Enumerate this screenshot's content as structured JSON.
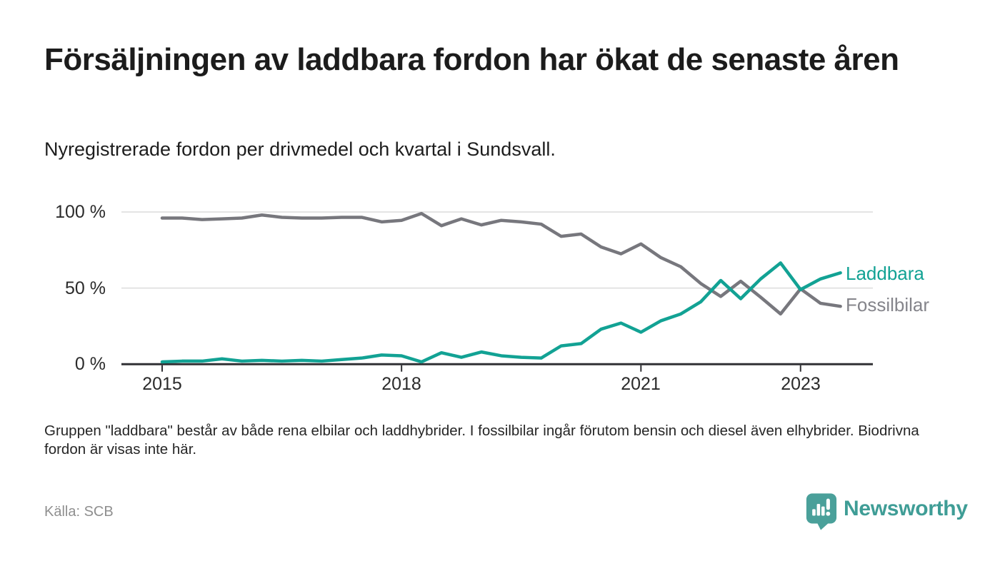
{
  "header": {
    "title": "Försäljningen av laddbara fordon har ökat de senaste åren",
    "subtitle": "Nyregistrerade fordon per drivmedel och kvartal i Sundsvall."
  },
  "chart_data": {
    "type": "line",
    "unit": "%",
    "title": "Nyregistrerade fordon per drivmedel och kvartal i Sundsvall",
    "ylim": [
      0,
      100
    ],
    "y_ticks": [
      "100 %",
      "50 %",
      "0 %"
    ],
    "x_ticks": [
      "2015",
      "2018",
      "2021",
      "2023"
    ],
    "grid_lines_percent": [
      50,
      100
    ],
    "legend_position": "end-of-line-labels-right",
    "x_quarters": [
      "2015 Q1",
      "2015 Q2",
      "2015 Q3",
      "2015 Q4",
      "2016 Q1",
      "2016 Q2",
      "2016 Q3",
      "2016 Q4",
      "2017 Q1",
      "2017 Q2",
      "2017 Q3",
      "2017 Q4",
      "2018 Q1",
      "2018 Q2",
      "2018 Q3",
      "2018 Q4",
      "2019 Q1",
      "2019 Q2",
      "2019 Q3",
      "2019 Q4",
      "2020 Q1",
      "2020 Q2",
      "2020 Q3",
      "2020 Q4",
      "2021 Q1",
      "2021 Q2",
      "2021 Q3",
      "2021 Q4",
      "2022 Q1",
      "2022 Q2",
      "2022 Q3",
      "2022 Q4",
      "2023 Q1",
      "2023 Q2",
      "2023 Q3"
    ],
    "series": [
      {
        "name": "Laddbara",
        "color": "#12a294",
        "values": [
          1.5,
          2,
          2,
          3.5,
          2,
          2.5,
          2,
          2.5,
          2,
          3,
          4,
          6,
          5.5,
          1.5,
          7.5,
          4.5,
          8,
          5.5,
          4.5,
          4,
          12,
          13.5,
          23,
          27,
          21,
          28.5,
          33,
          41,
          55,
          43,
          56,
          66.5,
          49,
          56,
          60
        ]
      },
      {
        "name": "Fossilbilar",
        "color": "#77777d",
        "values": [
          96,
          96,
          95,
          95.5,
          96,
          98,
          96.5,
          96,
          96,
          96.5,
          96.5,
          93.5,
          94.5,
          99,
          91,
          95.5,
          91.5,
          94.5,
          93.5,
          92,
          84,
          85.5,
          77,
          72.5,
          79,
          70,
          64,
          53,
          44.5,
          54.5,
          44,
          33,
          49.5,
          40,
          38
        ]
      }
    ],
    "axis_color": "#303034",
    "gridline_color": "#dcdcdc"
  },
  "footer": {
    "note": "Gruppen \"laddbara\" består av både rena elbilar och laddhybrider. I fossilbilar ingår förutom bensin och diesel även elhybrider. Biodrivna fordon är visas inte här.",
    "source": "Källa: SCB",
    "brand": "Newsworthy"
  }
}
